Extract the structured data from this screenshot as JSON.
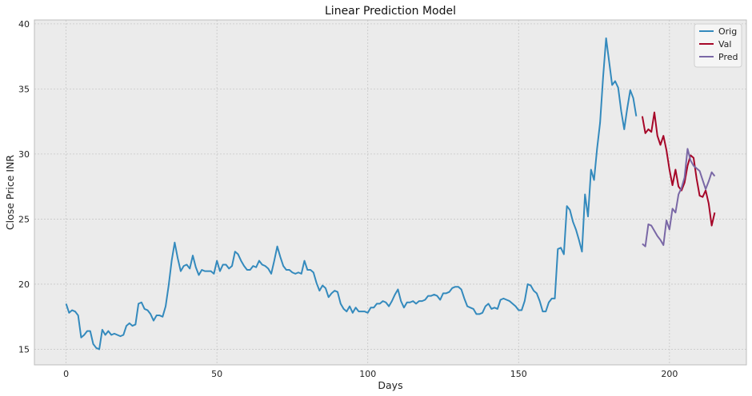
{
  "chart_data": {
    "type": "line",
    "title": "Linear Prediction Model",
    "xlabel": "Days",
    "ylabel": "Close Price INR",
    "xlim": [
      -10.5,
      225.5
    ],
    "ylim": [
      13.8,
      40.3
    ],
    "xticks": [
      0,
      50,
      100,
      150,
      200
    ],
    "yticks": [
      15,
      20,
      25,
      30,
      35,
      40
    ],
    "grid": true,
    "legend_position": "top-right",
    "colors": {
      "background": "#ebebeb",
      "grid": "#c7c7c7",
      "frame": "#bcbcbc"
    },
    "series": [
      {
        "name": "Orig",
        "color": "#348abd",
        "x_start": 0,
        "values": [
          18.5,
          17.8,
          18.0,
          17.9,
          17.6,
          15.9,
          16.1,
          16.4,
          16.4,
          15.4,
          15.1,
          15.0,
          16.5,
          16.1,
          16.4,
          16.1,
          16.2,
          16.1,
          16.0,
          16.1,
          16.8,
          17.0,
          16.8,
          16.9,
          18.5,
          18.6,
          18.1,
          18.0,
          17.7,
          17.2,
          17.6,
          17.6,
          17.5,
          18.3,
          19.9,
          21.8,
          23.2,
          22.0,
          21.0,
          21.4,
          21.5,
          21.2,
          22.2,
          21.3,
          20.7,
          21.1,
          21.0,
          21.0,
          21.0,
          20.8,
          21.8,
          21.0,
          21.5,
          21.5,
          21.2,
          21.4,
          22.5,
          22.3,
          21.8,
          21.4,
          21.1,
          21.1,
          21.4,
          21.3,
          21.8,
          21.5,
          21.4,
          21.2,
          20.8,
          21.8,
          22.9,
          22.1,
          21.4,
          21.1,
          21.1,
          20.9,
          20.8,
          20.9,
          20.8,
          21.8,
          21.1,
          21.1,
          20.9,
          20.1,
          19.5,
          19.9,
          19.7,
          19.0,
          19.3,
          19.5,
          19.4,
          18.5,
          18.1,
          17.9,
          18.3,
          17.8,
          18.2,
          17.9,
          17.9,
          17.9,
          17.8,
          18.2,
          18.2,
          18.5,
          18.5,
          18.7,
          18.6,
          18.3,
          18.7,
          19.2,
          19.6,
          18.7,
          18.2,
          18.6,
          18.6,
          18.7,
          18.5,
          18.7,
          18.7,
          18.8,
          19.1,
          19.1,
          19.2,
          19.1,
          18.8,
          19.3,
          19.3,
          19.4,
          19.7,
          19.8,
          19.8,
          19.6,
          18.9,
          18.3,
          18.2,
          18.1,
          17.7,
          17.7,
          17.8,
          18.3,
          18.5,
          18.1,
          18.2,
          18.1,
          18.8,
          18.9,
          18.8,
          18.7,
          18.5,
          18.3,
          18.0,
          18.0,
          18.7,
          20.0,
          19.9,
          19.5,
          19.3,
          18.7,
          17.9,
          17.9,
          18.6,
          18.9,
          18.9,
          22.7,
          22.8,
          22.3,
          26.0,
          25.7,
          24.8,
          24.2,
          23.4,
          22.5,
          26.9,
          25.2,
          28.8,
          28.0,
          30.4,
          32.4,
          35.9,
          38.9,
          37.1,
          35.3,
          35.6,
          35.1,
          33.3,
          31.9,
          33.5,
          34.9,
          34.3,
          32.9
        ]
      },
      {
        "name": "Val",
        "color": "#a60628",
        "x_start": 191,
        "values": [
          32.9,
          31.6,
          31.9,
          31.7,
          33.2,
          31.4,
          30.7,
          31.4,
          30.3,
          28.8,
          27.6,
          28.8,
          27.5,
          27.2,
          27.8,
          29.1,
          29.9,
          29.7,
          28.1,
          26.8,
          26.7,
          27.2,
          26.2,
          24.5,
          25.5
        ]
      },
      {
        "name": "Pred",
        "color": "#7a68a6",
        "x_start": 191,
        "values": [
          23.1,
          22.9,
          24.6,
          24.5,
          24.1,
          23.7,
          23.4,
          23.0,
          24.9,
          24.2,
          25.8,
          25.5,
          26.9,
          27.4,
          28.2,
          30.4,
          29.5,
          29.1,
          28.9,
          28.7,
          28.0,
          27.3,
          27.9,
          28.6,
          28.3
        ]
      }
    ]
  }
}
